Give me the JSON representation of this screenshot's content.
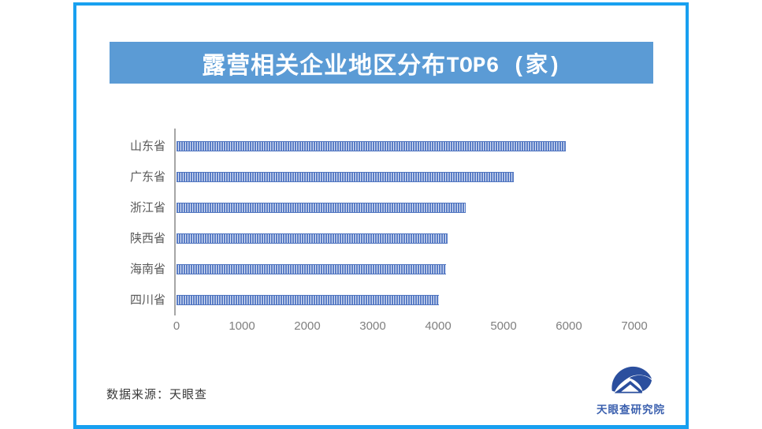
{
  "frame": {
    "accent_color": "#18a0f0"
  },
  "banner": {
    "title_cjk": "露营相关企业地区分布",
    "title_latin": "TOP6 (家)",
    "bg_color": "#5b9bd5",
    "text_color": "#ffffff"
  },
  "chart_data": {
    "type": "bar",
    "orientation": "horizontal",
    "title": "露营相关企业地区分布TOP6 (家)",
    "categories": [
      "山东省",
      "广东省",
      "浙江省",
      "陕西省",
      "海南省",
      "四川省"
    ],
    "values": [
      5950,
      5160,
      4420,
      4150,
      4120,
      4010
    ],
    "xlim": [
      0,
      7000
    ],
    "x_ticks": [
      0,
      1000,
      2000,
      3000,
      4000,
      5000,
      6000,
      7000
    ],
    "tick_labels": [
      "0",
      "1000",
      "2000",
      "3000",
      "4000",
      "5000",
      "6000",
      "7000"
    ],
    "xlabel": "",
    "ylabel": "",
    "grid": false,
    "legend": false,
    "bar_stripe_dark": "#5b7ec6",
    "bar_stripe_light": "#dce4f5",
    "axis_color": "#a6a6a6",
    "tick_label_color": "#7f7f7f",
    "category_label_color": "#595959"
  },
  "footer": {
    "source_label": "数据来源：天眼查"
  },
  "logo": {
    "text": "天眼查研究院",
    "color": "#2b4f9e"
  }
}
